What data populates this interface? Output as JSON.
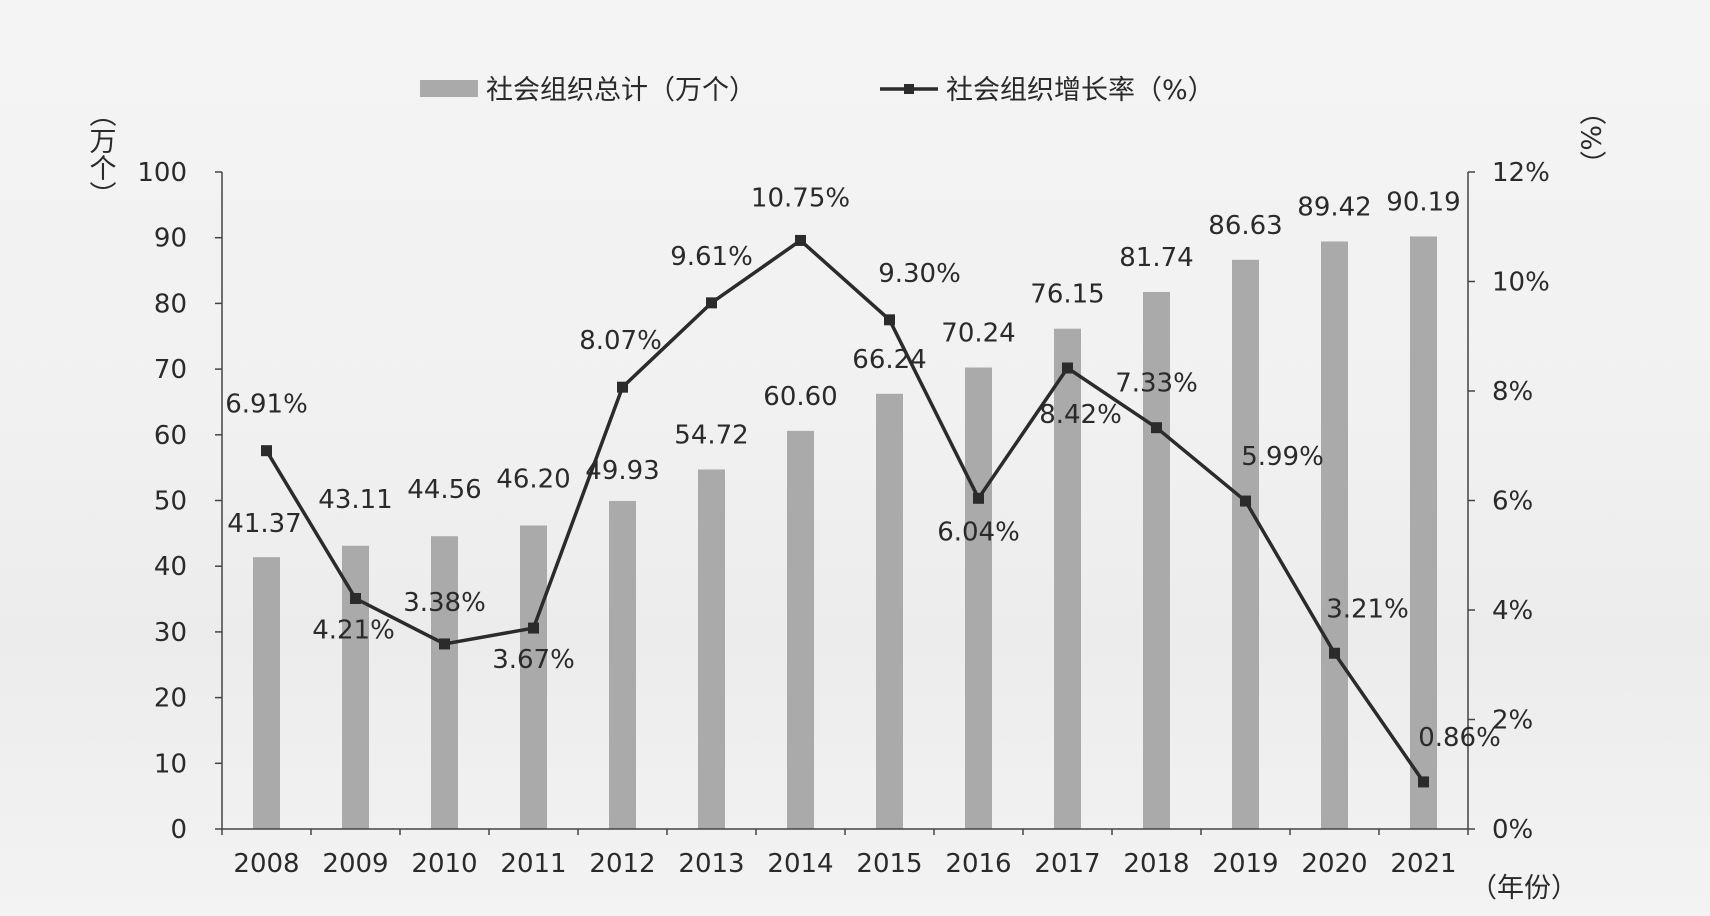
{
  "chart_data": {
    "type": "bar+line",
    "categories": [
      "2008",
      "2009",
      "2010",
      "2011",
      "2012",
      "2013",
      "2014",
      "2015",
      "2016",
      "2017",
      "2018",
      "2019",
      "2020",
      "2021"
    ],
    "series": [
      {
        "name": "社会组织总计（万个）",
        "type": "bar",
        "axis": "left",
        "values": [
          41.37,
          43.11,
          44.56,
          46.2,
          49.93,
          54.72,
          60.6,
          66.24,
          70.24,
          76.15,
          81.74,
          86.63,
          89.42,
          90.19
        ],
        "labels": [
          "41.37",
          "43.11",
          "44.56",
          "46.20",
          "49.93",
          "54.72",
          "60.60",
          "66.24",
          "70.24",
          "76.15",
          "81.74",
          "86.63",
          "89.42",
          "90.19"
        ],
        "color": "#aaaaaa"
      },
      {
        "name": "社会组织增长率（%）",
        "type": "line",
        "axis": "right",
        "values": [
          6.91,
          4.21,
          3.38,
          3.67,
          8.07,
          9.61,
          10.75,
          9.3,
          6.04,
          8.42,
          7.33,
          5.99,
          3.21,
          0.86
        ],
        "labels": [
          "6.91%",
          "4.21%",
          "3.38%",
          "3.67%",
          "8.07%",
          "9.61%",
          "10.75%",
          "9.30%",
          "6.04%",
          "8.42%",
          "7.33%",
          "5.99%",
          "3.21%",
          "0.86%"
        ],
        "color": "#2b2b2b"
      }
    ],
    "y_left": {
      "title": "（万个）",
      "ylim": [
        0,
        100
      ],
      "ticks": [
        "0",
        "10",
        "20",
        "30",
        "40",
        "50",
        "60",
        "70",
        "80",
        "90",
        "100"
      ]
    },
    "y_right": {
      "title": "（%）",
      "ylim": [
        0,
        12
      ],
      "ticks": [
        "0%",
        "2%",
        "4%",
        "6%",
        "8%",
        "10%",
        "12%"
      ]
    },
    "x_title": "（年份）",
    "legend_position": "top-center",
    "grid": false
  }
}
